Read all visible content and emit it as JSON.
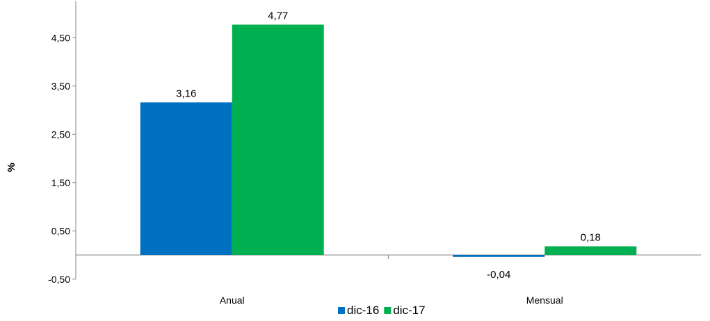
{
  "chart_data": {
    "type": "bar",
    "title": "",
    "xlabel": "",
    "ylabel": "%",
    "categories": [
      "Anual",
      "Mensual"
    ],
    "series": [
      {
        "name": "dic-16",
        "color": "#0070C0",
        "values": [
          3.16,
          -0.04
        ],
        "labels": [
          "3,16",
          "-0,04"
        ]
      },
      {
        "name": "dic-17",
        "color": "#00B050",
        "values": [
          4.77,
          0.18
        ],
        "labels": [
          "4,77",
          "0,18"
        ]
      }
    ],
    "ylim": [
      -0.5,
      4.77
    ],
    "yticks": [
      -0.5,
      0.5,
      1.5,
      2.5,
      3.5,
      4.5
    ],
    "ytick_labels": [
      "-0,50",
      "0,50",
      "1,50",
      "2,50",
      "3,50",
      "4,50"
    ],
    "grid": false,
    "legend_position": "bottom"
  }
}
